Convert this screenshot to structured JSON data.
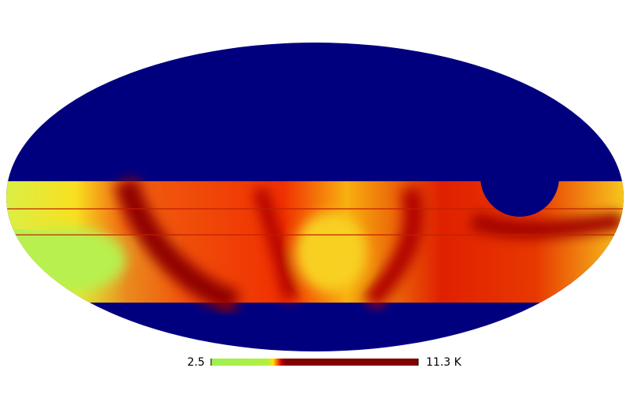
{
  "colorbar": {
    "min": 2.5,
    "max": {
      "value": 11.3,
      "label": "11.3 K"
    }
  }
}
